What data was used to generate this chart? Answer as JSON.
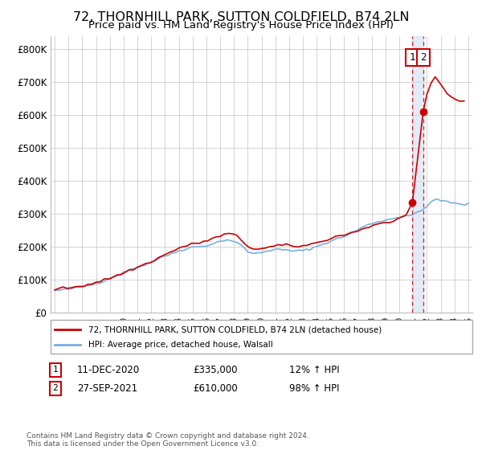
{
  "title": "72, THORNHILL PARK, SUTTON COLDFIELD, B74 2LN",
  "subtitle": "Price paid vs. HM Land Registry's House Price Index (HPI)",
  "ylim": [
    0,
    840000
  ],
  "yticks": [
    0,
    100000,
    200000,
    300000,
    400000,
    500000,
    600000,
    700000,
    800000
  ],
  "ytick_labels": [
    "£0",
    "£100K",
    "£200K",
    "£300K",
    "£400K",
    "£500K",
    "£600K",
    "£700K",
    "£800K"
  ],
  "hpi_color": "#7aafdc",
  "price_paid_color": "#cc0000",
  "sale1_date": 2020.95,
  "sale1_value": 335000,
  "sale2_date": 2021.73,
  "sale2_value": 610000,
  "annotation1": [
    "1",
    "11-DEC-2020",
    "£335,000",
    "12% ↑ HPI"
  ],
  "annotation2": [
    "2",
    "27-SEP-2021",
    "£610,000",
    "98% ↑ HPI"
  ],
  "legend_line1": "72, THORNHILL PARK, SUTTON COLDFIELD, B74 2LN (detached house)",
  "legend_line2": "HPI: Average price, detached house, Walsall",
  "footer": "Contains HM Land Registry data © Crown copyright and database right 2024.\nThis data is licensed under the Open Government Licence v3.0.",
  "background_color": "#ffffff",
  "grid_color": "#cccccc",
  "hpi_x": [
    1995.0,
    1995.25,
    1995.5,
    1995.75,
    1996.0,
    1996.25,
    1996.5,
    1996.75,
    1997.0,
    1997.25,
    1997.5,
    1997.75,
    1998.0,
    1998.25,
    1998.5,
    1998.75,
    1999.0,
    1999.25,
    1999.5,
    1999.75,
    2000.0,
    2000.25,
    2000.5,
    2000.75,
    2001.0,
    2001.25,
    2001.5,
    2001.75,
    2002.0,
    2002.25,
    2002.5,
    2002.75,
    2003.0,
    2003.25,
    2003.5,
    2003.75,
    2004.0,
    2004.25,
    2004.5,
    2004.75,
    2005.0,
    2005.25,
    2005.5,
    2005.75,
    2006.0,
    2006.25,
    2006.5,
    2006.75,
    2007.0,
    2007.25,
    2007.5,
    2007.75,
    2008.0,
    2008.25,
    2008.5,
    2008.75,
    2009.0,
    2009.25,
    2009.5,
    2009.75,
    2010.0,
    2010.25,
    2010.5,
    2010.75,
    2011.0,
    2011.25,
    2011.5,
    2011.75,
    2012.0,
    2012.25,
    2012.5,
    2012.75,
    2013.0,
    2013.25,
    2013.5,
    2013.75,
    2014.0,
    2014.25,
    2014.5,
    2014.75,
    2015.0,
    2015.25,
    2015.5,
    2015.75,
    2016.0,
    2016.25,
    2016.5,
    2016.75,
    2017.0,
    2017.25,
    2017.5,
    2017.75,
    2018.0,
    2018.25,
    2018.5,
    2018.75,
    2019.0,
    2019.25,
    2019.5,
    2019.75,
    2020.0,
    2020.25,
    2020.5,
    2020.75,
    2020.95,
    2021.0,
    2021.25,
    2021.5,
    2021.73,
    2021.75,
    2022.0,
    2022.25,
    2022.5,
    2022.75,
    2023.0,
    2023.25,
    2023.5,
    2023.75,
    2024.0,
    2024.25,
    2024.5,
    2024.75,
    2025.0
  ],
  "hpi_y": [
    67000,
    68500,
    69000,
    70000,
    72000,
    73500,
    75000,
    77000,
    79000,
    81000,
    83000,
    86000,
    89000,
    92000,
    96000,
    100000,
    104000,
    108000,
    113000,
    118000,
    122000,
    127000,
    132000,
    136000,
    139000,
    142000,
    145000,
    149000,
    153000,
    158000,
    163000,
    168000,
    172000,
    176000,
    180000,
    184000,
    188000,
    191000,
    194000,
    197000,
    199000,
    200000,
    201000,
    202000,
    204000,
    207000,
    210000,
    213000,
    217000,
    220000,
    221000,
    220000,
    217000,
    212000,
    205000,
    196000,
    186000,
    182000,
    180000,
    181000,
    183000,
    186000,
    189000,
    191000,
    192000,
    192000,
    191000,
    190000,
    189000,
    188000,
    188000,
    188000,
    189000,
    191000,
    194000,
    197000,
    201000,
    205000,
    209000,
    213000,
    217000,
    221000,
    225000,
    228000,
    232000,
    236000,
    241000,
    246000,
    252000,
    258000,
    263000,
    267000,
    271000,
    274000,
    277000,
    279000,
    281000,
    283000,
    285000,
    288000,
    291000,
    294000,
    295000,
    296000,
    298000,
    299000,
    302000,
    308000,
    313000,
    315000,
    325000,
    335000,
    342000,
    342000,
    340000,
    340000,
    338000,
    335000,
    332000,
    330000,
    328000,
    328000,
    330000
  ],
  "pp_x": [
    1995.0,
    1995.3,
    1995.6,
    1995.9,
    1996.2,
    1996.5,
    1996.8,
    1997.1,
    1997.4,
    1997.7,
    1998.0,
    1998.3,
    1998.6,
    1998.9,
    1999.2,
    1999.5,
    1999.8,
    2000.1,
    2000.4,
    2000.7,
    2001.0,
    2001.3,
    2001.6,
    2001.9,
    2002.2,
    2002.5,
    2002.8,
    2003.1,
    2003.4,
    2003.7,
    2004.0,
    2004.3,
    2004.6,
    2004.9,
    2005.2,
    2005.5,
    2005.8,
    2006.1,
    2006.4,
    2006.7,
    2007.0,
    2007.3,
    2007.6,
    2007.9,
    2008.2,
    2008.5,
    2008.8,
    2009.1,
    2009.4,
    2009.7,
    2010.0,
    2010.3,
    2010.6,
    2010.9,
    2011.2,
    2011.5,
    2011.8,
    2012.1,
    2012.4,
    2012.7,
    2013.0,
    2013.3,
    2013.6,
    2013.9,
    2014.2,
    2014.5,
    2014.8,
    2015.1,
    2015.4,
    2015.7,
    2016.0,
    2016.3,
    2016.6,
    2016.9,
    2017.2,
    2017.5,
    2017.8,
    2018.1,
    2018.4,
    2018.7,
    2019.0,
    2019.3,
    2019.6,
    2019.9,
    2020.2,
    2020.5,
    2020.95,
    2021.73,
    2022.0,
    2022.3,
    2022.6,
    2022.9,
    2023.2,
    2023.5,
    2023.8,
    2024.1,
    2024.4,
    2024.7
  ],
  "pp_y": [
    72000,
    73000,
    74000,
    76000,
    77000,
    79000,
    81000,
    83000,
    86000,
    89000,
    92000,
    96000,
    100000,
    104000,
    108000,
    113000,
    118000,
    122000,
    128000,
    133000,
    138000,
    143000,
    148000,
    154000,
    160000,
    166000,
    172000,
    178000,
    184000,
    190000,
    196000,
    200000,
    204000,
    207000,
    210000,
    213000,
    216000,
    220000,
    224000,
    228000,
    233000,
    237000,
    240000,
    238000,
    232000,
    222000,
    210000,
    200000,
    195000,
    193000,
    194000,
    196000,
    199000,
    202000,
    204000,
    205000,
    204000,
    203000,
    202000,
    202000,
    203000,
    205000,
    208000,
    211000,
    215000,
    219000,
    223000,
    227000,
    231000,
    234000,
    237000,
    240000,
    244000,
    248000,
    252000,
    257000,
    261000,
    265000,
    268000,
    270000,
    272000,
    276000,
    280000,
    285000,
    290000,
    296000,
    335000,
    610000,
    660000,
    695000,
    715000,
    700000,
    680000,
    665000,
    655000,
    648000,
    642000,
    638000
  ]
}
